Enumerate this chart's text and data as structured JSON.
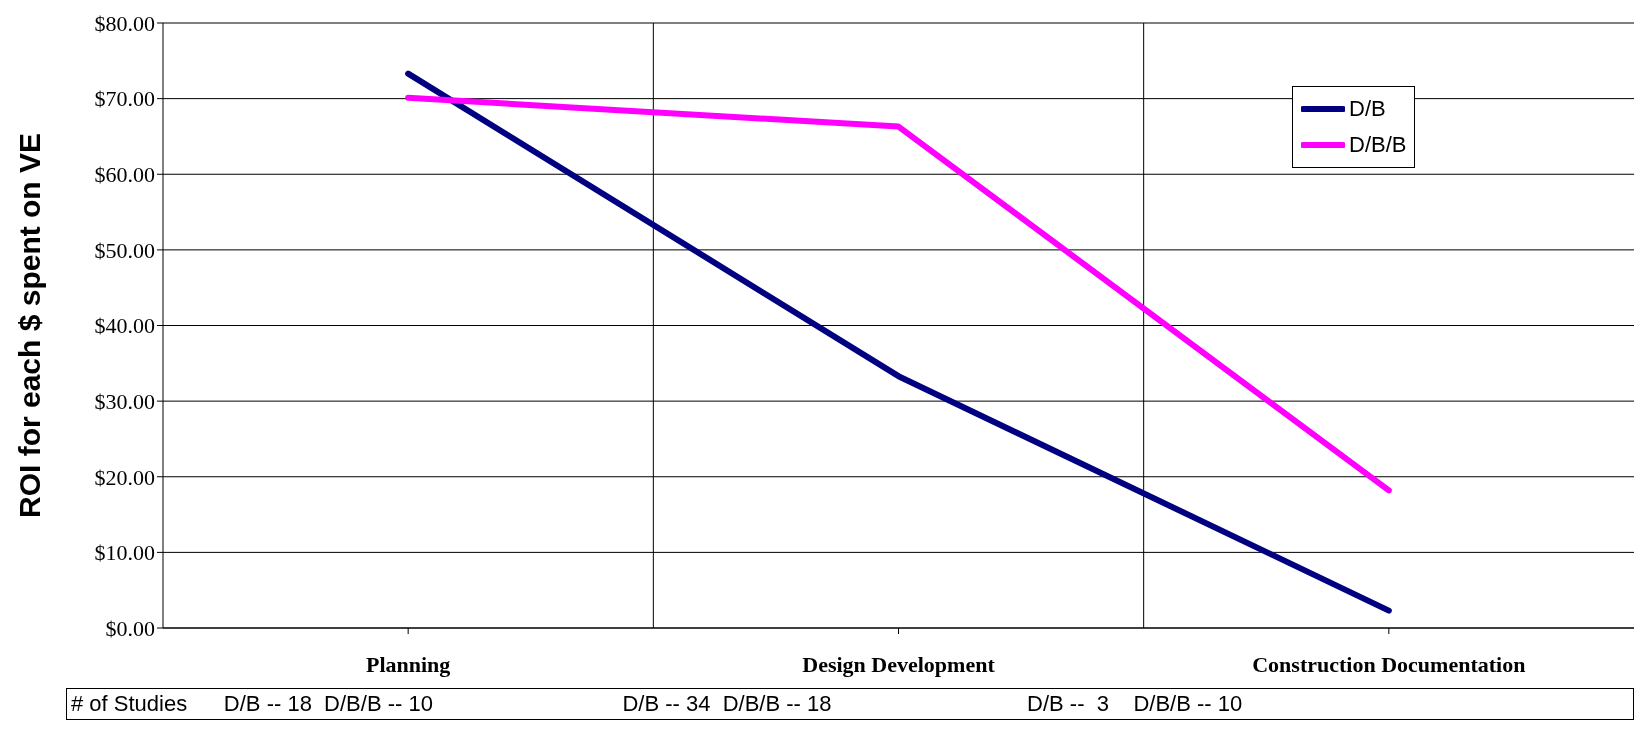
{
  "chart_data": {
    "type": "line",
    "ylabel": "ROI for each $ spent on VE",
    "categories": [
      "Planning",
      "Design Development",
      "Construction Documentation"
    ],
    "series": [
      {
        "name": "D/B",
        "color": "#000080",
        "values": [
          73.3,
          33.3,
          2.3
        ]
      },
      {
        "name": "D/B/B",
        "color": "#ff00ff",
        "values": [
          70.1,
          66.3,
          18.2
        ]
      }
    ],
    "ylim": [
      0,
      80
    ],
    "yticks": [
      {
        "value": 0,
        "label": "$0.00"
      },
      {
        "value": 10,
        "label": "$10.00"
      },
      {
        "value": 20,
        "label": "$20.00"
      },
      {
        "value": 30,
        "label": "$30.00"
      },
      {
        "value": 40,
        "label": "$40.00"
      },
      {
        "value": 50,
        "label": "$50.00"
      },
      {
        "value": 60,
        "label": "$60.00"
      },
      {
        "value": 70,
        "label": "$70.00"
      },
      {
        "value": 80,
        "label": "$80.00"
      }
    ],
    "grid": true,
    "legend": "top right",
    "marker": "none",
    "line_style": "solid",
    "annotations": [
      "# of Studies      D/B -- 18  D/B/B -- 10                               D/B -- 34  D/B/B -- 18                                D/B --  3    D/B/B -- 10"
    ]
  }
}
